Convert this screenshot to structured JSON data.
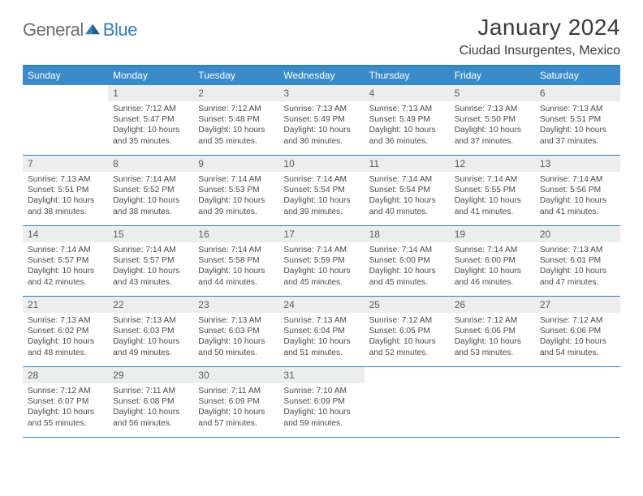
{
  "brand": {
    "part1": "General",
    "part2": "Blue"
  },
  "title": "January 2024",
  "location": "Ciudad Insurgentes, Mexico",
  "colors": {
    "accent": "#2f7fc1",
    "header_bg": "#3a8bc9",
    "daynum_bg": "#eceeee",
    "text": "#4a4a4a",
    "title_text": "#3a3a3a"
  },
  "weekdays": [
    "Sunday",
    "Monday",
    "Tuesday",
    "Wednesday",
    "Thursday",
    "Friday",
    "Saturday"
  ],
  "weeks": [
    [
      {
        "n": "",
        "sr": "",
        "ss": "",
        "dl": ""
      },
      {
        "n": "1",
        "sr": "7:12 AM",
        "ss": "5:47 PM",
        "dl": "10 hours and 35 minutes."
      },
      {
        "n": "2",
        "sr": "7:12 AM",
        "ss": "5:48 PM",
        "dl": "10 hours and 35 minutes."
      },
      {
        "n": "3",
        "sr": "7:13 AM",
        "ss": "5:49 PM",
        "dl": "10 hours and 36 minutes."
      },
      {
        "n": "4",
        "sr": "7:13 AM",
        "ss": "5:49 PM",
        "dl": "10 hours and 36 minutes."
      },
      {
        "n": "5",
        "sr": "7:13 AM",
        "ss": "5:50 PM",
        "dl": "10 hours and 37 minutes."
      },
      {
        "n": "6",
        "sr": "7:13 AM",
        "ss": "5:51 PM",
        "dl": "10 hours and 37 minutes."
      }
    ],
    [
      {
        "n": "7",
        "sr": "7:13 AM",
        "ss": "5:51 PM",
        "dl": "10 hours and 38 minutes."
      },
      {
        "n": "8",
        "sr": "7:14 AM",
        "ss": "5:52 PM",
        "dl": "10 hours and 38 minutes."
      },
      {
        "n": "9",
        "sr": "7:14 AM",
        "ss": "5:53 PM",
        "dl": "10 hours and 39 minutes."
      },
      {
        "n": "10",
        "sr": "7:14 AM",
        "ss": "5:54 PM",
        "dl": "10 hours and 39 minutes."
      },
      {
        "n": "11",
        "sr": "7:14 AM",
        "ss": "5:54 PM",
        "dl": "10 hours and 40 minutes."
      },
      {
        "n": "12",
        "sr": "7:14 AM",
        "ss": "5:55 PM",
        "dl": "10 hours and 41 minutes."
      },
      {
        "n": "13",
        "sr": "7:14 AM",
        "ss": "5:56 PM",
        "dl": "10 hours and 41 minutes."
      }
    ],
    [
      {
        "n": "14",
        "sr": "7:14 AM",
        "ss": "5:57 PM",
        "dl": "10 hours and 42 minutes."
      },
      {
        "n": "15",
        "sr": "7:14 AM",
        "ss": "5:57 PM",
        "dl": "10 hours and 43 minutes."
      },
      {
        "n": "16",
        "sr": "7:14 AM",
        "ss": "5:58 PM",
        "dl": "10 hours and 44 minutes."
      },
      {
        "n": "17",
        "sr": "7:14 AM",
        "ss": "5:59 PM",
        "dl": "10 hours and 45 minutes."
      },
      {
        "n": "18",
        "sr": "7:14 AM",
        "ss": "6:00 PM",
        "dl": "10 hours and 45 minutes."
      },
      {
        "n": "19",
        "sr": "7:14 AM",
        "ss": "6:00 PM",
        "dl": "10 hours and 46 minutes."
      },
      {
        "n": "20",
        "sr": "7:13 AM",
        "ss": "6:01 PM",
        "dl": "10 hours and 47 minutes."
      }
    ],
    [
      {
        "n": "21",
        "sr": "7:13 AM",
        "ss": "6:02 PM",
        "dl": "10 hours and 48 minutes."
      },
      {
        "n": "22",
        "sr": "7:13 AM",
        "ss": "6:03 PM",
        "dl": "10 hours and 49 minutes."
      },
      {
        "n": "23",
        "sr": "7:13 AM",
        "ss": "6:03 PM",
        "dl": "10 hours and 50 minutes."
      },
      {
        "n": "24",
        "sr": "7:13 AM",
        "ss": "6:04 PM",
        "dl": "10 hours and 51 minutes."
      },
      {
        "n": "25",
        "sr": "7:12 AM",
        "ss": "6:05 PM",
        "dl": "10 hours and 52 minutes."
      },
      {
        "n": "26",
        "sr": "7:12 AM",
        "ss": "6:06 PM",
        "dl": "10 hours and 53 minutes."
      },
      {
        "n": "27",
        "sr": "7:12 AM",
        "ss": "6:06 PM",
        "dl": "10 hours and 54 minutes."
      }
    ],
    [
      {
        "n": "28",
        "sr": "7:12 AM",
        "ss": "6:07 PM",
        "dl": "10 hours and 55 minutes."
      },
      {
        "n": "29",
        "sr": "7:11 AM",
        "ss": "6:08 PM",
        "dl": "10 hours and 56 minutes."
      },
      {
        "n": "30",
        "sr": "7:11 AM",
        "ss": "6:09 PM",
        "dl": "10 hours and 57 minutes."
      },
      {
        "n": "31",
        "sr": "7:10 AM",
        "ss": "6:09 PM",
        "dl": "10 hours and 59 minutes."
      },
      {
        "n": "",
        "sr": "",
        "ss": "",
        "dl": ""
      },
      {
        "n": "",
        "sr": "",
        "ss": "",
        "dl": ""
      },
      {
        "n": "",
        "sr": "",
        "ss": "",
        "dl": ""
      }
    ]
  ],
  "labels": {
    "sunrise": "Sunrise: ",
    "sunset": "Sunset: ",
    "daylight": "Daylight: "
  }
}
